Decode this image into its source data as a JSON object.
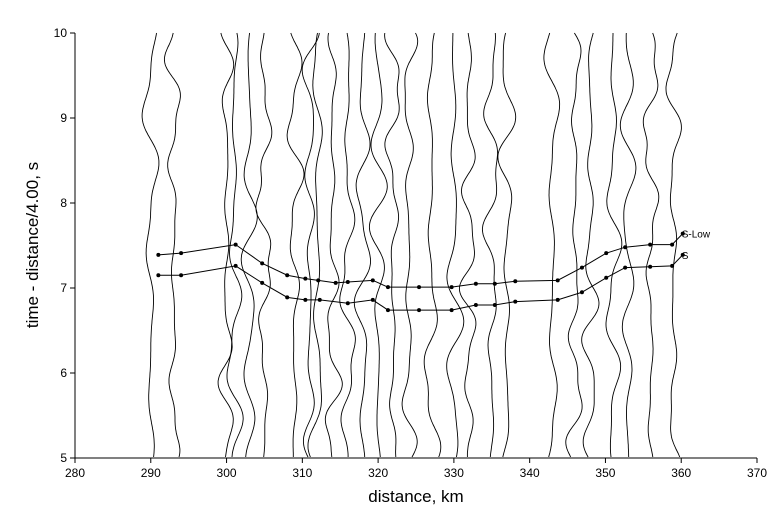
{
  "chart_data": {
    "type": "record-section",
    "xlabel": "distance, km",
    "ylabel": "time - distance/4.00, s",
    "xlim": [
      280,
      370
    ],
    "ylim": [
      5,
      10
    ],
    "xticks": [
      280,
      290,
      300,
      310,
      320,
      330,
      340,
      350,
      360,
      370
    ],
    "yticks": [
      5,
      6,
      7,
      8,
      9,
      10
    ],
    "traces": [
      290,
      293,
      300,
      301,
      303,
      305,
      309,
      311,
      312,
      314,
      316,
      318,
      320,
      322,
      324,
      327,
      330,
      332,
      335,
      337,
      343,
      346,
      348,
      351,
      353,
      356,
      359
    ],
    "series": [
      {
        "name": "S-Low",
        "color": "#000000",
        "x": [
          291.0,
          294.0,
          301.2,
          304.7,
          308.0,
          310.4,
          312.1,
          314.4,
          316.0,
          319.3,
          321.3,
          325.4,
          329.7,
          332.9,
          335.4,
          338.1,
          343.7,
          346.9,
          350.1,
          352.6,
          355.9,
          358.8,
          360.2
        ],
        "values": [
          7.39,
          7.41,
          7.51,
          7.29,
          7.15,
          7.11,
          7.09,
          7.06,
          7.07,
          7.09,
          7.01,
          7.01,
          7.01,
          7.05,
          7.05,
          7.08,
          7.09,
          7.24,
          7.41,
          7.48,
          7.51,
          7.51,
          7.64
        ]
      },
      {
        "name": "S",
        "color": "#000000",
        "x": [
          291.0,
          294.0,
          301.2,
          304.7,
          308.0,
          310.4,
          312.3,
          316.0,
          319.3,
          321.3,
          325.4,
          329.7,
          332.9,
          335.4,
          338.1,
          343.7,
          346.9,
          350.1,
          352.6,
          355.9,
          358.8,
          360.2
        ],
        "values": [
          7.15,
          7.15,
          7.26,
          7.06,
          6.89,
          6.86,
          6.86,
          6.82,
          6.86,
          6.74,
          6.74,
          6.74,
          6.8,
          6.8,
          6.84,
          6.86,
          6.95,
          7.12,
          7.24,
          7.25,
          7.26,
          7.39
        ]
      }
    ]
  }
}
